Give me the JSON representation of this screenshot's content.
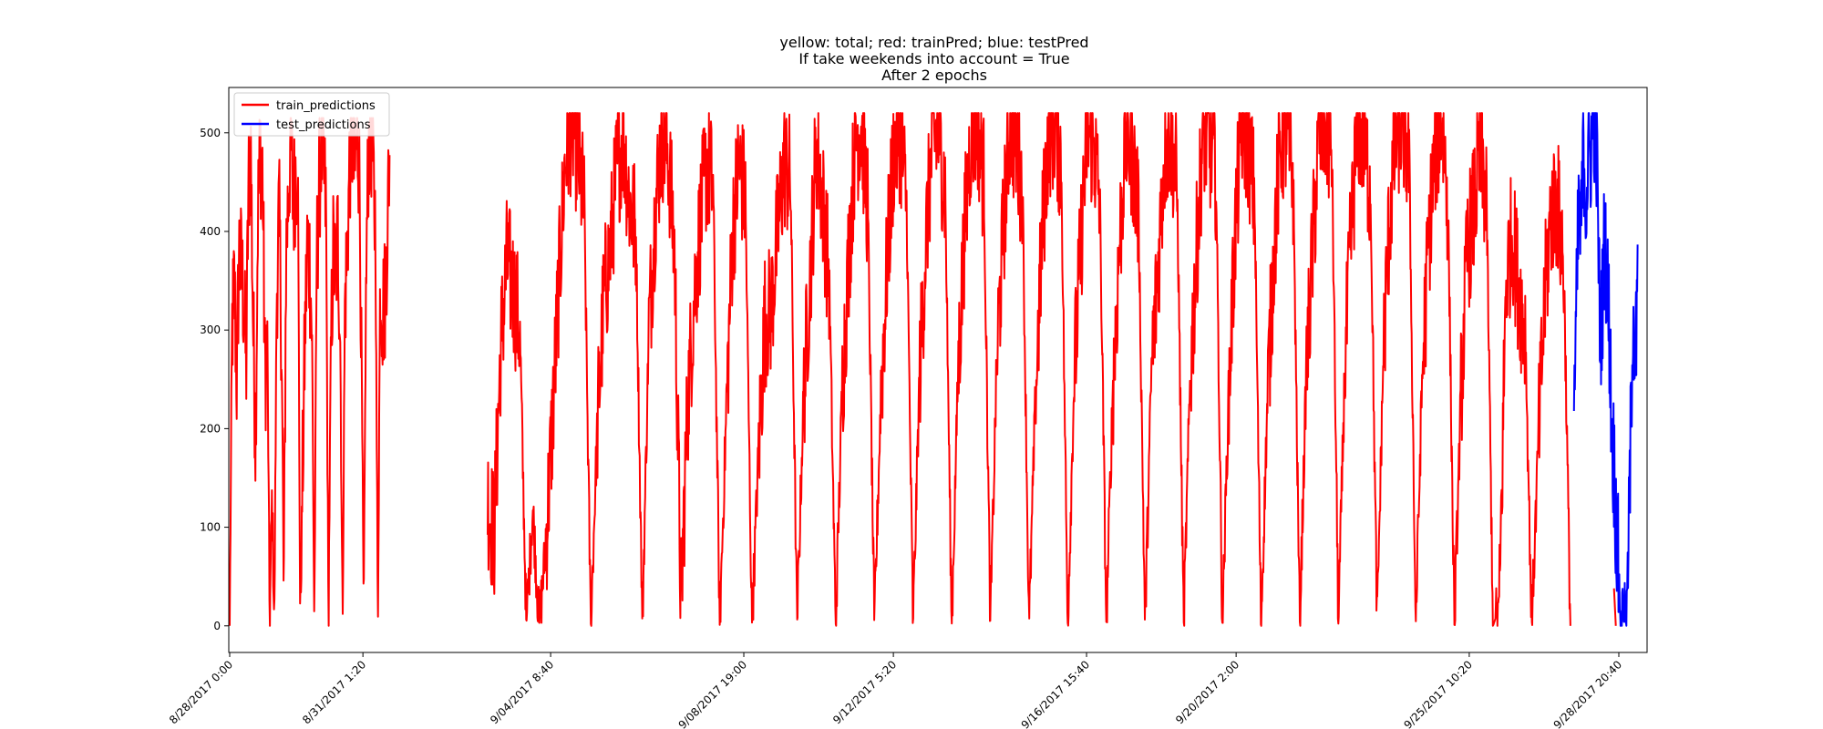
{
  "chart_data": {
    "type": "line",
    "title_lines": [
      "yellow: total; red: trainPred; blue: testPred",
      "If take weekends into account = True",
      "After 2 epochs"
    ],
    "xlabel": "",
    "ylabel": "",
    "ylim": [
      -27,
      546
    ],
    "yticks": [
      0,
      100,
      200,
      300,
      400,
      500
    ],
    "xticks": [
      "8/28/2017 0:00",
      "8/31/2017 1:20",
      "9/04/2017 8:40",
      "9/08/2017 19:00",
      "9/12/2017 5:20",
      "9/16/2017 15:40",
      "9/20/2017 2:00",
      "9/25/2017 10:20",
      "9/28/2017 20:40"
    ],
    "legend": {
      "placement": "upper-left"
    },
    "series": [
      {
        "name": "train_predictions",
        "color": "#ff0000",
        "segments": [
          {
            "x_start": "8/28/2017 0:00",
            "x_end": "8/31/2017 16:00",
            "pattern": "daily-cycle",
            "low": 0,
            "high": 515,
            "samples": [
              0,
              300,
              345,
              250,
              380,
              360,
              330,
              260,
              445,
              480,
              300,
              190,
              420,
              485,
              460,
              250,
              300,
              0,
              130,
              0,
              340,
              420,
              300,
              20,
              380,
              440,
              500,
              420,
              460,
              470,
              0,
              150,
              290,
              390,
              370,
              300,
              0,
              370,
              440,
              490,
              460,
              420,
              0,
              270,
              380,
              350,
              400,
              300,
              0,
              330,
              380,
              470,
              500,
              450,
              490,
              480,
              300,
              0,
              350,
              480,
              510,
              460,
              400,
              0,
              350,
              320,
              330,
              400,
              480
            ]
          },
          {
            "x_start": "9/02/2017 22:00",
            "x_end": "9/27/2017 18:00",
            "pattern": "daily-cycle",
            "low": 0,
            "high": 520,
            "samples": [
              130,
              88,
              280,
              370,
              340,
              300,
              0,
              120,
              0,
              80,
              200,
              340,
              470,
              510,
              480,
              420,
              0,
              200,
              330,
              380,
              460,
              500,
              430,
              400,
              0,
              300,
              420,
              500,
              480,
              380,
              20,
              220,
              330,
              410,
              470,
              440,
              0,
              210,
              400,
              470,
              430,
              0,
              170,
              310,
              320,
              400,
              470,
              450,
              0,
              230,
              350,
              490,
              430,
              350,
              0,
              240,
              370,
              490,
              510,
              420,
              0,
              230,
              370,
              480,
              500,
              430,
              0,
              250,
              390,
              490,
              500,
              440,
              0,
              260,
              400,
              500,
              510,
              450,
              0,
              270,
              400,
              510,
              490,
              440,
              0,
              230,
              390,
              500,
              510,
              470,
              0,
              250,
              380,
              500,
              490,
              430,
              0,
              240,
              380,
              500,
              480,
              420,
              0,
              260,
              360,
              480,
              500,
              440,
              0,
              250,
              380,
              500,
              490,
              460,
              0,
              240,
              400,
              510,
              490,
              430,
              0,
              230,
              380,
              490,
              500,
              450,
              0,
              250,
              380,
              500,
              510,
              480,
              0,
              260,
              400,
              510,
              490,
              440,
              0,
              280,
              420,
              500,
              510,
              470,
              0,
              250,
              390,
              480,
              520,
              430,
              0,
              230,
              380,
              420,
              480,
              430,
              0,
              20,
              350,
              400,
              340,
              300,
              0,
              180,
              330,
              420,
              430,
              360,
              0
            ]
          },
          {
            "x_start": "9/28/2017 18:00",
            "x_end": "9/28/2017 19:00",
            "pattern": "single-blip",
            "low": 0,
            "high": 38,
            "samples": [
              38,
              0
            ]
          }
        ]
      },
      {
        "name": "test_predictions",
        "color": "#0000ff",
        "segments": [
          {
            "x_start": "9/27/2017 20:00",
            "x_end": "9/29/2017 7:00",
            "pattern": "daily-cycle",
            "low": 0,
            "high": 520,
            "samples": [
              230,
              310,
              420,
              390,
              500,
              430,
              470,
              480,
              510,
              520,
              440,
              300,
              320,
              400,
              350,
              300,
              200,
              160,
              100,
              50,
              0,
              30,
              0,
              60,
              180,
              330,
              260,
              330
            ]
          }
        ]
      }
    ]
  }
}
